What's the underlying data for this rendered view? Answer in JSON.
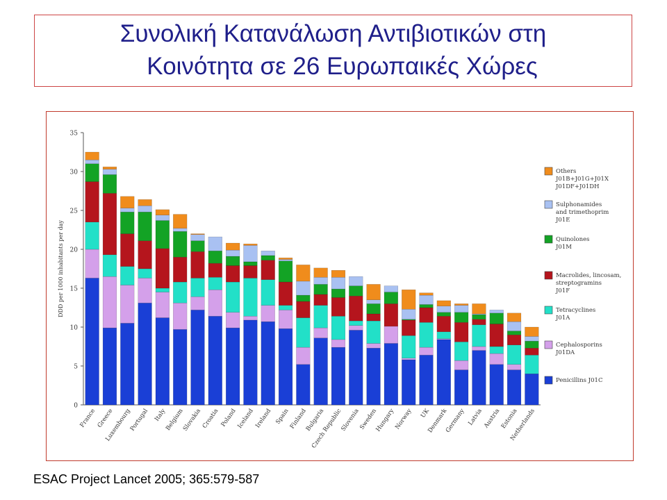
{
  "title": {
    "line1": "Συνολική Κατανάλωση Αντιβιοτικών στη",
    "line2": "Κοινότητα σε 26 Ευρωπαικές Χώρες"
  },
  "citation": "ESAC Project  Lancet 2005; 365:579-587",
  "chart_data": {
    "type": "bar",
    "stacked": true,
    "ylabel": "DDD per 1000 inhabitants per day",
    "ylim": [
      0,
      35
    ],
    "yticks": [
      0,
      5,
      10,
      15,
      20,
      25,
      30,
      35
    ],
    "legend_position": "right",
    "categories": [
      "France",
      "Greece",
      "Luxembourg",
      "Portugal",
      "Italy",
      "Belgium",
      "Slovakia",
      "Croatia",
      "Poland",
      "Iceland",
      "Ireland",
      "Spain",
      "Finland",
      "Bulgaria",
      "Czech Republic",
      "Slovenia",
      "Sweden",
      "Hungary",
      "Norway",
      "UK",
      "Denmark",
      "Germany",
      "Latvia",
      "Austria",
      "Estonia",
      "Netherlands"
    ],
    "series": [
      {
        "name": "Penicillins J01C",
        "color": "#1a3fd6",
        "values": [
          16.3,
          9.9,
          10.5,
          13.1,
          11.2,
          9.7,
          12.2,
          11.4,
          9.9,
          10.9,
          10.7,
          9.8,
          5.2,
          8.6,
          7.4,
          9.6,
          7.3,
          7.9,
          5.8,
          6.4,
          8.4,
          4.5,
          7.0,
          5.2,
          4.5,
          4.0
        ]
      },
      {
        "name": "Cephalosporins J01DA",
        "color": "#d4a0ea",
        "values": [
          3.7,
          6.6,
          4.9,
          3.2,
          3.3,
          3.4,
          1.7,
          3.4,
          2.0,
          0.5,
          2.1,
          2.4,
          2.2,
          1.3,
          1.0,
          0.6,
          0.6,
          2.2,
          0.2,
          1.0,
          0.1,
          1.2,
          0.5,
          1.4,
          0.7,
          0.0
        ]
      },
      {
        "name": "Tetracyclines J01A",
        "color": "#22e0c8",
        "values": [
          3.5,
          2.8,
          2.4,
          1.2,
          0.5,
          2.7,
          2.4,
          1.6,
          3.9,
          4.9,
          3.3,
          0.6,
          3.8,
          2.9,
          3.0,
          0.6,
          2.9,
          0.0,
          2.9,
          3.2,
          0.9,
          2.4,
          2.8,
          0.9,
          2.5,
          2.4
        ]
      },
      {
        "name": "Macrolides, lincosamides, streptogramins J01F",
        "color": "#b5151d",
        "values": [
          5.2,
          7.9,
          4.2,
          3.6,
          5.1,
          3.2,
          3.4,
          1.8,
          2.1,
          1.6,
          2.5,
          3.0,
          2.1,
          1.4,
          2.4,
          3.2,
          0.9,
          2.9,
          2.0,
          1.9,
          2.0,
          2.5,
          0.7,
          2.9,
          1.3,
          0.9
        ]
      },
      {
        "name": "Quinolones J01M",
        "color": "#13a325",
        "values": [
          2.3,
          2.4,
          2.8,
          3.7,
          3.6,
          3.3,
          1.4,
          1.6,
          1.2,
          0.5,
          0.6,
          2.7,
          0.8,
          1.3,
          1.1,
          1.3,
          1.3,
          1.5,
          0.1,
          0.4,
          0.5,
          1.3,
          0.6,
          1.4,
          0.5,
          0.9
        ]
      },
      {
        "name": "Sulphonamides and trimethoprim J01E",
        "color": "#a9c1f2",
        "values": [
          0.5,
          0.7,
          0.5,
          0.8,
          0.7,
          0.4,
          0.8,
          1.8,
          0.8,
          2.1,
          0.6,
          0.2,
          1.8,
          0.9,
          1.5,
          1.2,
          0.5,
          0.8,
          1.3,
          1.2,
          0.8,
          0.9,
          0.1,
          0.4,
          1.2,
          0.6
        ]
      },
      {
        "name": "Others J01B+J01G+J01X J01DF+J01DH",
        "color": "#f08c1c",
        "values": [
          1.0,
          0.3,
          1.5,
          0.8,
          0.7,
          1.8,
          0.1,
          0.0,
          0.9,
          0.2,
          0.0,
          0.2,
          2.1,
          1.2,
          0.9,
          0.0,
          2.0,
          0.0,
          2.5,
          0.3,
          0.7,
          0.2,
          1.3,
          0.0,
          1.1,
          1.2
        ]
      }
    ],
    "legend": [
      {
        "lines": [
          "Others",
          "J01B+J01G+J01X",
          "J01DF+J01DH"
        ],
        "color": "#f08c1c"
      },
      {
        "lines": [
          "Sulphonamides",
          "and trimethoprim",
          "J01E"
        ],
        "color": "#a9c1f2"
      },
      {
        "lines": [
          "Quinolones",
          "J01M"
        ],
        "color": "#13a325"
      },
      {
        "lines": [
          "Macrolides, lincosam,",
          "streptogramins",
          "J01F"
        ],
        "color": "#b5151d"
      },
      {
        "lines": [
          "Tetracyclines",
          "J01A"
        ],
        "color": "#22e0c8"
      },
      {
        "lines": [
          "Cephalosporins",
          "J01DA"
        ],
        "color": "#d4a0ea"
      },
      {
        "lines": [
          "Penicillins J01C"
        ],
        "color": "#1a3fd6"
      }
    ]
  }
}
